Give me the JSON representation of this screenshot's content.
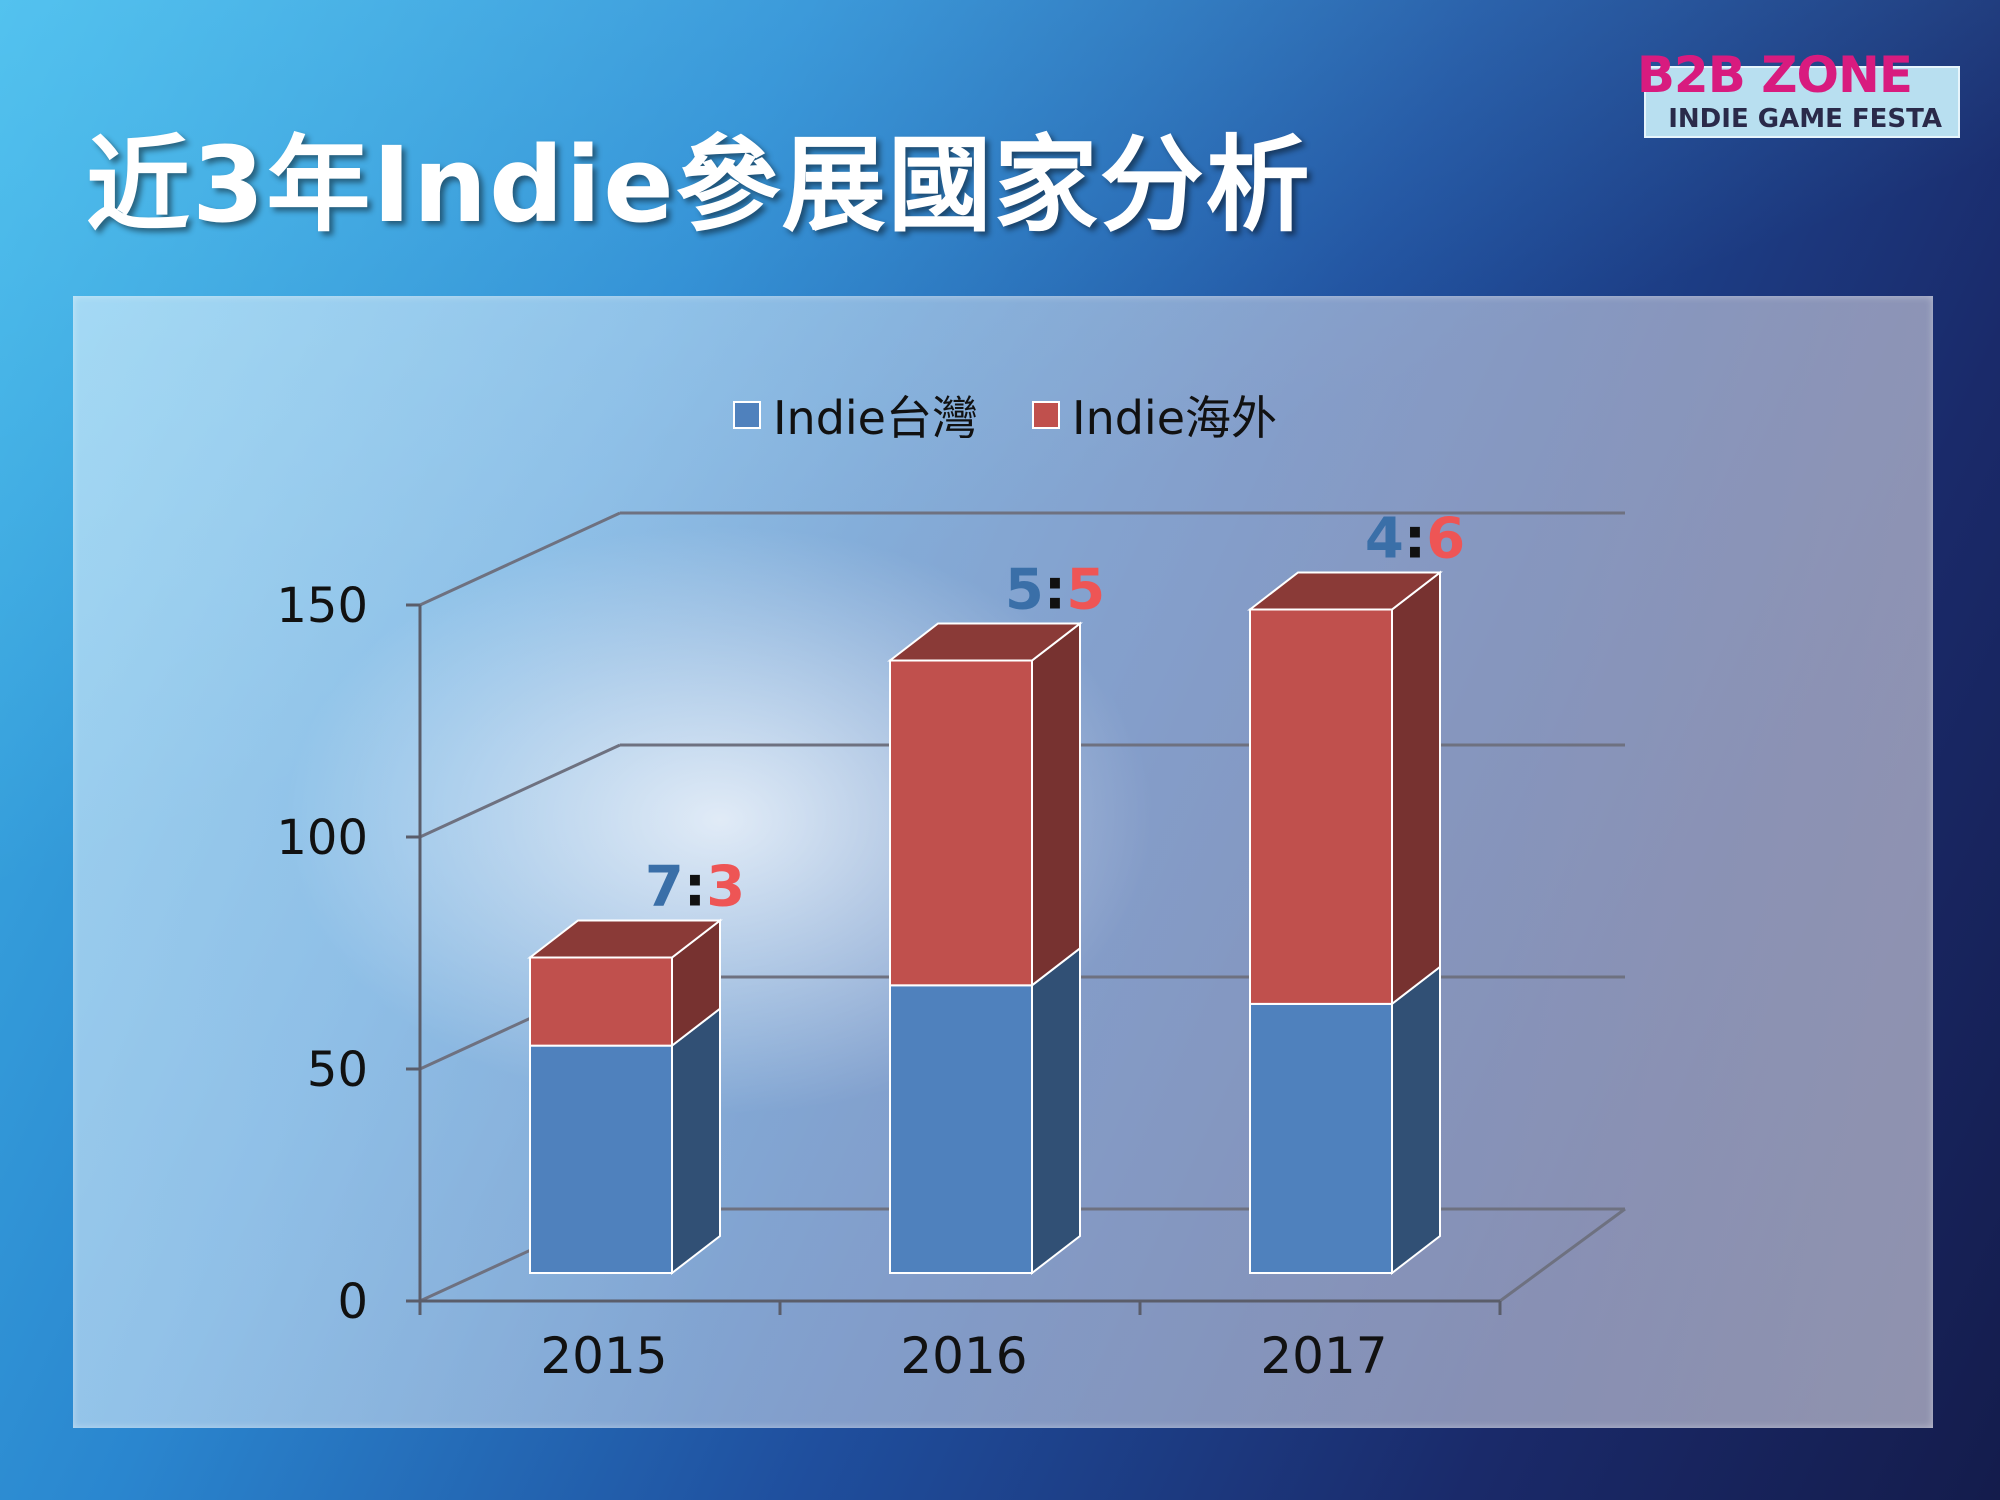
{
  "slide": {
    "title": "近3年Indie參展國家分析",
    "logo": {
      "main": "B2B ZONE",
      "sub": "INDIE GAME FESTA"
    }
  },
  "colors": {
    "taiwan": "#4f81bd",
    "overseas": "#c0504d",
    "ratio_taiwan": "#3a6fa8",
    "ratio_overseas": "#ee5555"
  },
  "chart_data": {
    "type": "bar",
    "stacked": true,
    "three_d": true,
    "categories": [
      "2015",
      "2016",
      "2017"
    ],
    "series": [
      {
        "name": "Indie台灣",
        "values": [
          49,
          62,
          58
        ]
      },
      {
        "name": "Indie海外",
        "values": [
          19,
          70,
          85
        ]
      }
    ],
    "ratio_labels": [
      {
        "taiwan": "7",
        "sep": ":",
        "overseas": "3"
      },
      {
        "taiwan": "5",
        "sep": ":",
        "overseas": "5"
      },
      {
        "taiwan": "4",
        "sep": ":",
        "overseas": "6"
      }
    ],
    "y_ticks": [
      0,
      50,
      100,
      150
    ],
    "ylim": [
      0,
      150
    ],
    "grid": true,
    "legend_position": "top"
  }
}
